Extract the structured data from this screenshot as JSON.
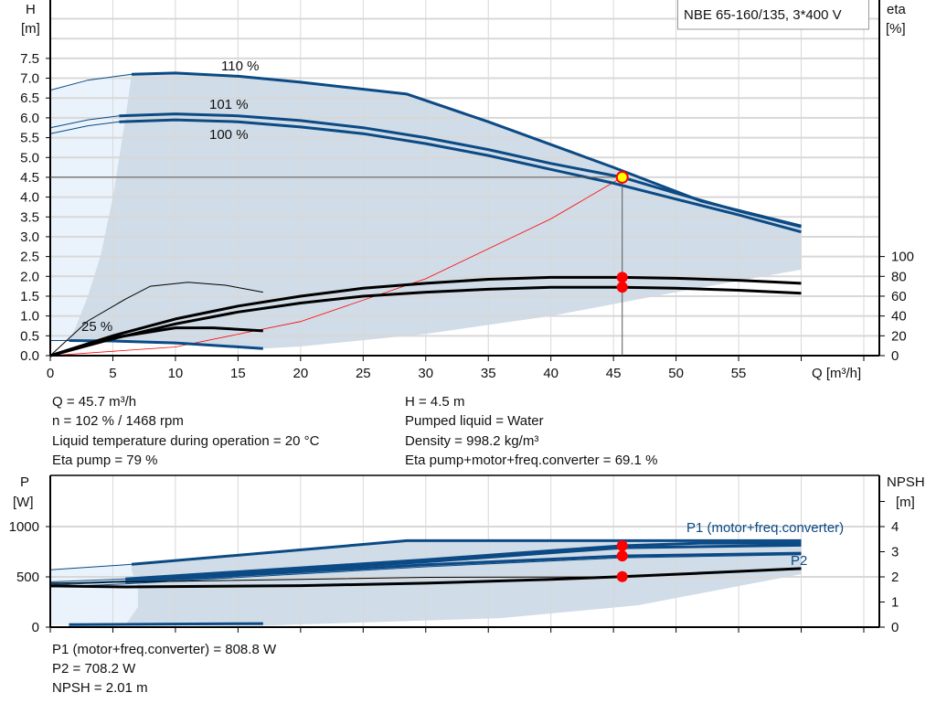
{
  "title_box": "NBE 65-160/135, 3*400 V",
  "colors": {
    "curve_blue": "#0b4a85",
    "range_fill": "#d0dce7",
    "range_light": "#eaf3fb",
    "eta_black": "#000000",
    "system_red": "#ff0000",
    "op_point": "#ffff00",
    "grid": "#d8d8d8"
  },
  "info_top": {
    "left": [
      "Q = 45.7 m³/h",
      "n = 102 % / 1468 rpm",
      "Liquid temperature during operation = 20 °C",
      "Eta pump = 79 %"
    ],
    "right": [
      "H = 4.5 m",
      "Pumped liquid = Water",
      "Density = 998.2 kg/m³",
      "Eta pump+motor+freq.converter = 69.1 %"
    ]
  },
  "info_bottom": [
    "P1 (motor+freq.converter) = 808.8 W",
    "P2 = 708.2 W",
    "NPSH = 2.01 m"
  ],
  "chart_data": [
    {
      "type": "line",
      "ylabel_left": [
        "H",
        "[m]"
      ],
      "ylabel_right": [
        "eta",
        "[%]"
      ],
      "xlabel": "Q [m³/h]",
      "xlim": [
        0,
        65
      ],
      "ylim": [
        0,
        9
      ],
      "ylim_right": [
        0,
        100
      ],
      "x_ticks": [
        "0",
        "5",
        "10",
        "15",
        "20",
        "25",
        "30",
        "35",
        "40",
        "45",
        "50",
        "55"
      ],
      "y_ticks": [
        "0.0",
        "0.5",
        "1.0",
        "1.5",
        "2.0",
        "2.5",
        "3.0",
        "3.5",
        "4.0",
        "4.5",
        "5.0",
        "5.5",
        "6.0",
        "6.5",
        "7.0",
        "7.5"
      ],
      "y_ticks_right": [
        "0",
        "20",
        "40",
        "60",
        "80",
        "100"
      ],
      "grid": true,
      "curve_labels": [
        "110 %",
        "101 %",
        "100 %",
        "25 %"
      ],
      "series": [
        {
          "name": "110 %",
          "axis": "H",
          "thin": [
            [
              0,
              6.7
            ],
            [
              3,
              6.95
            ],
            [
              6.5,
              7.1
            ]
          ],
          "points": [
            [
              6.5,
              7.1
            ],
            [
              10,
              7.13
            ],
            [
              15,
              7.05
            ],
            [
              20,
              6.9
            ],
            [
              28.5,
              6.6
            ],
            [
              35,
              5.9
            ],
            [
              45,
              4.75
            ],
            [
              52,
              3.9
            ],
            [
              60,
              3.27
            ]
          ]
        },
        {
          "name": "101 %",
          "axis": "H",
          "thin": [
            [
              0,
              5.75
            ],
            [
              3,
              5.95
            ],
            [
              5.5,
              6.05
            ]
          ],
          "points": [
            [
              5.5,
              6.05
            ],
            [
              10,
              6.1
            ],
            [
              15,
              6.05
            ],
            [
              20,
              5.93
            ],
            [
              25,
              5.75
            ],
            [
              30,
              5.5
            ],
            [
              35,
              5.2
            ],
            [
              40,
              4.85
            ],
            [
              45.7,
              4.5
            ],
            [
              50,
              4.1
            ],
            [
              55,
              3.65
            ],
            [
              60,
              3.25
            ]
          ]
        },
        {
          "name": "100 %",
          "axis": "H",
          "thin": [
            [
              0,
              5.6
            ],
            [
              3,
              5.8
            ],
            [
              5.5,
              5.9
            ]
          ],
          "points": [
            [
              5.5,
              5.9
            ],
            [
              10,
              5.95
            ],
            [
              15,
              5.9
            ],
            [
              20,
              5.77
            ],
            [
              25,
              5.6
            ],
            [
              30,
              5.35
            ],
            [
              35,
              5.05
            ],
            [
              40,
              4.7
            ],
            [
              45,
              4.35
            ],
            [
              50,
              3.95
            ],
            [
              55,
              3.55
            ],
            [
              60,
              3.12
            ]
          ]
        },
        {
          "name": "25 %",
          "axis": "H",
          "thin": [
            [
              0,
              0.38
            ],
            [
              1.5,
              0.38
            ]
          ],
          "points": [
            [
              1.5,
              0.38
            ],
            [
              5,
              0.37
            ],
            [
              10,
              0.32
            ],
            [
              17,
              0.18
            ]
          ]
        },
        {
          "axis": "eta",
          "points": [
            [
              0,
              0
            ],
            [
              5,
              20
            ],
            [
              10,
              37
            ],
            [
              15,
              50
            ],
            [
              20,
              60
            ],
            [
              25,
              68
            ],
            [
              30,
              73
            ],
            [
              35,
              77
            ],
            [
              40,
              79
            ],
            [
              45.7,
              79
            ],
            [
              50,
              78
            ],
            [
              55,
              76
            ],
            [
              60,
              73
            ]
          ]
        },
        {
          "axis": "eta",
          "points": [
            [
              0,
              0
            ],
            [
              5,
              17
            ],
            [
              10,
              32
            ],
            [
              15,
              44
            ],
            [
              20,
              53
            ],
            [
              25,
              60
            ],
            [
              30,
              64
            ],
            [
              35,
              67
            ],
            [
              40,
              69
            ],
            [
              45.7,
              69
            ],
            [
              50,
              68
            ],
            [
              55,
              66
            ],
            [
              60,
              63
            ]
          ]
        },
        {
          "axis": "eta",
          "thin": [
            [
              0,
              0
            ],
            [
              3,
              35
            ],
            [
              6,
              57
            ],
            [
              8,
              70
            ],
            [
              11,
              74
            ],
            [
              14,
              71
            ],
            [
              17,
              64
            ]
          ],
          "points": []
        },
        {
          "axis": "eta",
          "points": [
            [
              0,
              0
            ],
            [
              5,
              18
            ],
            [
              10,
              28
            ],
            [
              13,
              28
            ],
            [
              17,
              25
            ]
          ]
        }
      ],
      "system_curve": [
        [
          0,
          0
        ],
        [
          10,
          0.22
        ],
        [
          20,
          0.86
        ],
        [
          30,
          1.94
        ],
        [
          40,
          3.45
        ],
        [
          45.7,
          4.5
        ]
      ],
      "range_region": [
        [
          6.5,
          7.1
        ],
        [
          10,
          7.13
        ],
        [
          15,
          7.05
        ],
        [
          20,
          6.9
        ],
        [
          28.5,
          6.6
        ],
        [
          35,
          5.9
        ],
        [
          45,
          4.75
        ],
        [
          52,
          3.9
        ],
        [
          60,
          3.27
        ],
        [
          60,
          2.17
        ],
        [
          50,
          1.6
        ],
        [
          45,
          1.3
        ],
        [
          40,
          1.0
        ],
        [
          30,
          0.55
        ],
        [
          20,
          0.23
        ],
        [
          17,
          0.18
        ],
        [
          10,
          0.32
        ],
        [
          5,
          0.37
        ],
        [
          1.5,
          0.38
        ],
        [
          2,
          0.7
        ],
        [
          3,
          1.5
        ],
        [
          4,
          2.5
        ],
        [
          5,
          4
        ],
        [
          6,
          6
        ]
      ],
      "light_region": [
        [
          0,
          6.7
        ],
        [
          3,
          6.95
        ],
        [
          6.5,
          7.1
        ],
        [
          6,
          6
        ],
        [
          5,
          4
        ],
        [
          4,
          2.5
        ],
        [
          3,
          1.5
        ],
        [
          2,
          0.7
        ],
        [
          1.5,
          0.38
        ],
        [
          0,
          0.38
        ]
      ],
      "operating_point": {
        "Q": 45.7,
        "H": 4.5,
        "eta_pump": 79,
        "eta_total": 69.1
      }
    },
    {
      "type": "line",
      "ylabel_left": [
        "P",
        "[W]"
      ],
      "ylabel_right": [
        "NPSH",
        "[m]"
      ],
      "xlim": [
        0,
        65
      ],
      "ylim": [
        0,
        1510
      ],
      "ylim_right": [
        0,
        5.5
      ],
      "y_ticks": [
        "0",
        "500",
        "1000"
      ],
      "y_ticks_right": [
        "0",
        "1",
        "2",
        "3",
        "4"
      ],
      "grid": true,
      "curve_labels": [
        "P1 (motor+freq.converter)",
        "P2"
      ],
      "series": [
        {
          "axis": "P",
          "thin": [
            [
              0,
              570
            ],
            [
              6.5,
              625
            ]
          ],
          "points": [
            [
              6.5,
              625
            ],
            [
              28.5,
              860
            ],
            [
              60,
              860
            ]
          ]
        },
        {
          "axis": "P",
          "thin": [
            [
              0,
              450
            ],
            [
              6,
              480
            ]
          ],
          "points": [
            [
              6,
              480
            ],
            [
              20,
              590
            ],
            [
              30,
              670
            ],
            [
              40,
              760
            ],
            [
              45.7,
              809
            ],
            [
              52,
              835
            ],
            [
              60,
              835
            ]
          ]
        },
        {
          "axis": "P",
          "thin": [
            [
              0,
              430
            ],
            [
              6,
              460
            ]
          ],
          "points": [
            [
              6,
              460
            ],
            [
              20,
              570
            ],
            [
              30,
              650
            ],
            [
              40,
              740
            ],
            [
              45.7,
              790
            ],
            [
              60,
              815
            ]
          ]
        },
        {
          "axis": "P",
          "thin": [
            [
              0,
              420
            ],
            [
              6,
              450
            ]
          ],
          "points": [
            [
              6,
              450
            ],
            [
              20,
              550
            ],
            [
              30,
              620
            ],
            [
              45.7,
              708
            ],
            [
              60,
              735
            ]
          ]
        },
        {
          "axis": "P",
          "thin": [
            [
              0,
              400
            ],
            [
              6,
              430
            ],
            [
              20,
              530
            ],
            [
              30,
              600
            ],
            [
              45.7,
              690
            ],
            [
              60,
              720
            ]
          ],
          "points": []
        },
        {
          "axis": "P",
          "points": [
            [
              1.5,
              25
            ],
            [
              17,
              35
            ]
          ]
        },
        {
          "axis": "NPSH",
          "points": [
            [
              0,
              1.64
            ],
            [
              6,
              1.6
            ],
            [
              20,
              1.65
            ],
            [
              30,
              1.75
            ],
            [
              40,
              1.9
            ],
            [
              45.7,
              2.01
            ],
            [
              52,
              2.15
            ],
            [
              60,
              2.33
            ]
          ]
        },
        {
          "axis": "NPSH",
          "thin": [
            [
              0,
              1.75
            ],
            [
              20,
              1.9
            ],
            [
              30,
              1.98
            ],
            [
              45.7,
              2.0
            ]
          ],
          "points": []
        }
      ],
      "range_region": [
        [
          6.5,
          625
        ],
        [
          28.5,
          860
        ],
        [
          60,
          860
        ],
        [
          60,
          527
        ],
        [
          47,
          218
        ],
        [
          36,
          90
        ],
        [
          17,
          15
        ],
        [
          6,
          20
        ],
        [
          7,
          200
        ],
        [
          7,
          400
        ],
        [
          6.5,
          560
        ]
      ],
      "light_region": [
        [
          0,
          570
        ],
        [
          6.5,
          625
        ],
        [
          6.5,
          560
        ],
        [
          7,
          400
        ],
        [
          7,
          200
        ],
        [
          6,
          20
        ],
        [
          0,
          20
        ]
      ],
      "operating_point": {
        "P1": 808.8,
        "P2": 708.2,
        "NPSH": 2.01
      }
    }
  ]
}
